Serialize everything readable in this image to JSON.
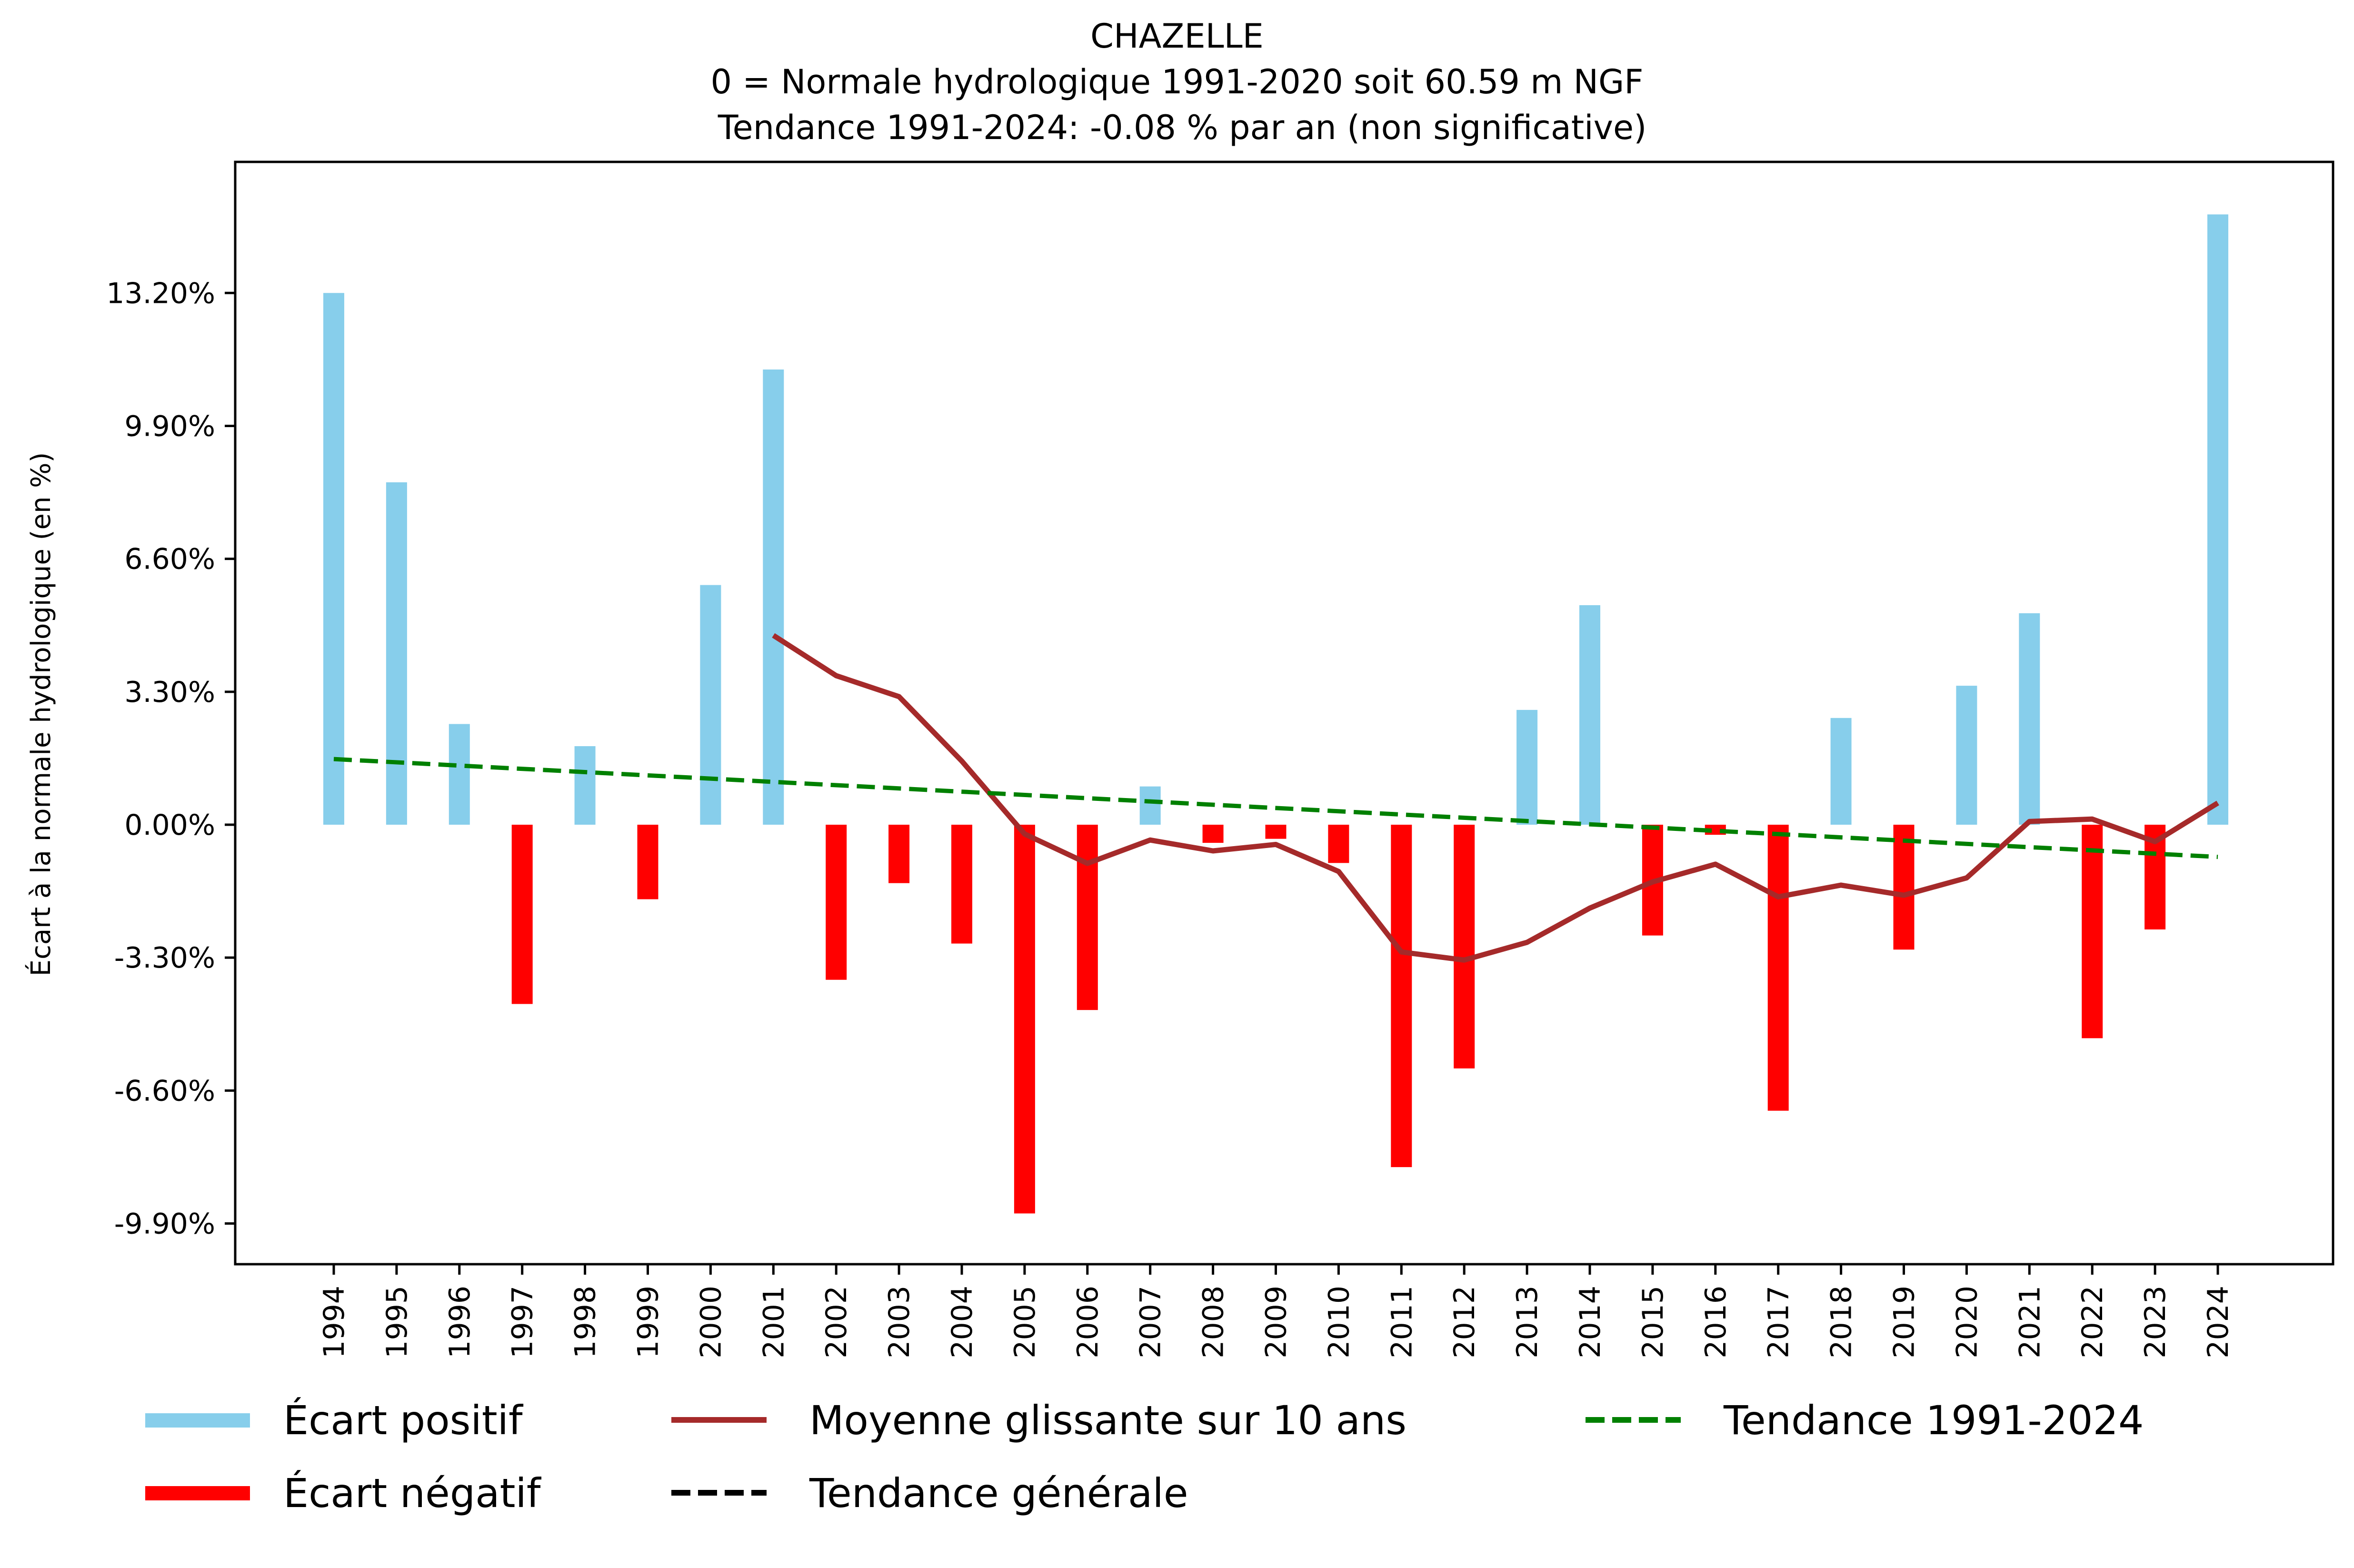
{
  "chart_data": {
    "type": "bar",
    "title": "CHAZELLE",
    "subtitle_lines": [
      "0 = Normale hydrologique 1991-2020 soit 60.59 m NGF",
      " Tendance 1991-2024: -0.08 % par an (non significative)"
    ],
    "xlabel": "",
    "ylabel": "Écart à la normale hydrologique (en %)",
    "ylim": [
      -10.9,
      16.8
    ],
    "yticks": [
      -9.9,
      -6.6,
      -3.3,
      0.0,
      3.3,
      6.6,
      9.9,
      13.2
    ],
    "ytick_labels": [
      "-9.90%",
      "-6.60%",
      "-3.30%",
      "0.00%",
      "3.30%",
      "6.60%",
      "9.90%",
      "13.20%"
    ],
    "grid": false,
    "categories": [
      "1994",
      "1995",
      "1996",
      "1997",
      "1998",
      "1999",
      "2000",
      "2001",
      "2002",
      "2003",
      "2004",
      "2005",
      "2006",
      "2007",
      "2008",
      "2009",
      "2010",
      "2011",
      "2012",
      "2013",
      "2014",
      "2015",
      "2016",
      "2017",
      "2018",
      "2019",
      "2020",
      "2021",
      "2022",
      "2023",
      "2024"
    ],
    "values": [
      13.2,
      8.5,
      2.5,
      -4.45,
      1.95,
      -1.85,
      5.95,
      11.3,
      -3.85,
      -1.45,
      -2.95,
      -9.65,
      -4.6,
      0.95,
      -0.45,
      -0.35,
      -0.95,
      -8.5,
      -6.05,
      2.85,
      5.45,
      -2.75,
      -0.25,
      -7.1,
      2.65,
      -3.1,
      3.45,
      5.25,
      -5.3,
      -2.6,
      15.15
    ],
    "series": [
      {
        "name": "Moyenne glissante sur 10 ans",
        "type": "line",
        "color": "#a52a2a",
        "x": [
          "2001",
          "2002",
          "2003",
          "2004",
          "2005",
          "2006",
          "2007",
          "2008",
          "2009",
          "2010",
          "2011",
          "2012",
          "2013",
          "2014",
          "2015",
          "2016",
          "2017",
          "2018",
          "2019",
          "2020",
          "2021",
          "2022",
          "2023",
          "2024"
        ],
        "values": [
          4.7,
          3.7,
          3.18,
          1.58,
          -0.23,
          -0.96,
          -0.38,
          -0.65,
          -0.49,
          -1.16,
          -3.16,
          -3.36,
          -2.92,
          -2.07,
          -1.42,
          -0.98,
          -1.79,
          -1.5,
          -1.75,
          -1.32,
          0.08,
          0.14,
          -0.42,
          0.54
        ]
      },
      {
        "name": "Tendance 1991-2024",
        "type": "line",
        "style": "dashed",
        "color": "#008000",
        "x": [
          "1994",
          "2024"
        ],
        "values": [
          1.63,
          -0.8
        ]
      }
    ],
    "legend": {
      "placement": "bottom",
      "entries": [
        {
          "label": "Écart positif",
          "kind": "patch",
          "color": "#87ceeb"
        },
        {
          "label": "Écart négatif",
          "kind": "patch",
          "color": "#ff0000"
        },
        {
          "label": "Moyenne glissante sur 10 ans",
          "kind": "line",
          "color": "#a52a2a"
        },
        {
          "label": "Tendance générale",
          "kind": "dashed",
          "color": "#000000"
        },
        {
          "label": "Tendance 1991-2024",
          "kind": "dashed",
          "color": "#008000"
        }
      ]
    },
    "colors": {
      "positive": "#87ceeb",
      "negative": "#ff0000",
      "rolling": "#a52a2a",
      "trend": "#008000",
      "general_trend": "#000000"
    }
  }
}
